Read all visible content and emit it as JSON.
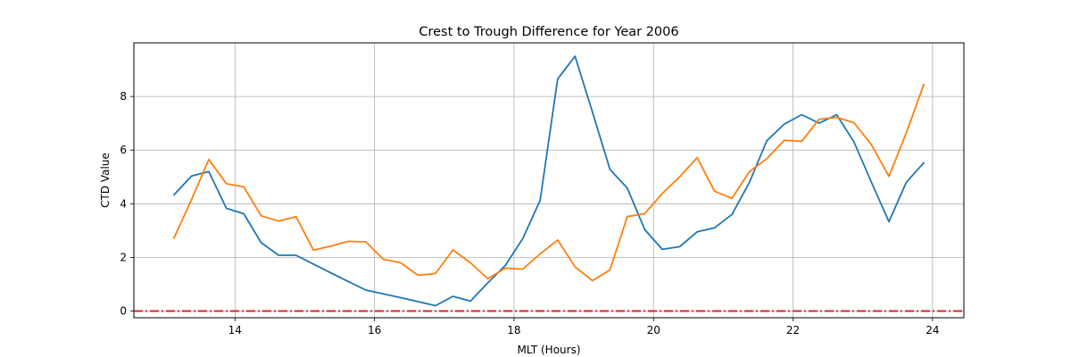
{
  "chart_data": {
    "type": "line",
    "title": "Crest to Trough Difference for Year 2006",
    "xlabel": "MLT (Hours)",
    "ylabel": "CTD Value",
    "xlim": [
      12.55,
      24.45
    ],
    "ylim": [
      -0.25,
      10.0
    ],
    "xticks": [
      14,
      16,
      18,
      20,
      22,
      24
    ],
    "yticks": [
      0,
      2,
      4,
      6,
      8
    ],
    "grid": true,
    "reference_line": {
      "y": 0,
      "color": "#d62728",
      "style": "dashdot"
    },
    "series": [
      {
        "color": "#1f77b4",
        "x": [
          13.125,
          13.375,
          13.625,
          13.875,
          14.125,
          14.375,
          14.625,
          14.875,
          15.125,
          15.375,
          15.625,
          15.875,
          16.125,
          16.375,
          16.625,
          16.875,
          17.125,
          17.375,
          17.625,
          17.875,
          18.125,
          18.375,
          18.625,
          18.875,
          19.125,
          19.375,
          19.625,
          19.875,
          20.125,
          20.375,
          20.625,
          20.875,
          21.125,
          21.375,
          21.625,
          21.875,
          22.125,
          22.375,
          22.625,
          22.875,
          23.125,
          23.375,
          23.625,
          23.875
        ],
        "y": [
          4.33,
          5.03,
          5.2,
          3.83,
          3.63,
          2.55,
          2.08,
          2.08,
          1.75,
          1.42,
          1.1,
          0.78,
          0.64,
          0.5,
          0.35,
          0.2,
          0.55,
          0.37,
          1.05,
          1.7,
          2.7,
          4.13,
          8.65,
          9.5,
          7.42,
          5.28,
          4.58,
          3.03,
          2.3,
          2.4,
          2.95,
          3.1,
          3.6,
          4.8,
          6.35,
          6.97,
          7.32,
          7.0,
          7.32,
          6.3,
          4.8,
          3.33,
          4.8,
          5.53
        ]
      },
      {
        "color": "#ff7f0e",
        "x": [
          13.125,
          13.375,
          13.625,
          13.875,
          14.125,
          14.375,
          14.625,
          14.875,
          15.125,
          15.375,
          15.625,
          15.875,
          16.125,
          16.375,
          16.625,
          16.875,
          17.125,
          17.375,
          17.625,
          17.875,
          18.125,
          18.375,
          18.625,
          18.875,
          19.125,
          19.375,
          19.625,
          19.875,
          20.125,
          20.375,
          20.625,
          20.875,
          21.125,
          21.375,
          21.625,
          21.875,
          22.125,
          22.375,
          22.625,
          22.875,
          23.125,
          23.375,
          23.625,
          23.875
        ],
        "y": [
          2.72,
          4.15,
          5.65,
          4.75,
          4.63,
          3.55,
          3.35,
          3.52,
          2.27,
          2.42,
          2.6,
          2.58,
          1.93,
          1.8,
          1.33,
          1.4,
          2.28,
          1.8,
          1.2,
          1.6,
          1.56,
          2.13,
          2.65,
          1.65,
          1.13,
          1.53,
          3.52,
          3.63,
          4.38,
          5.0,
          5.72,
          4.47,
          4.2,
          5.2,
          5.68,
          6.37,
          6.33,
          7.15,
          7.22,
          7.02,
          6.2,
          5.02,
          6.65,
          8.45
        ]
      }
    ]
  }
}
